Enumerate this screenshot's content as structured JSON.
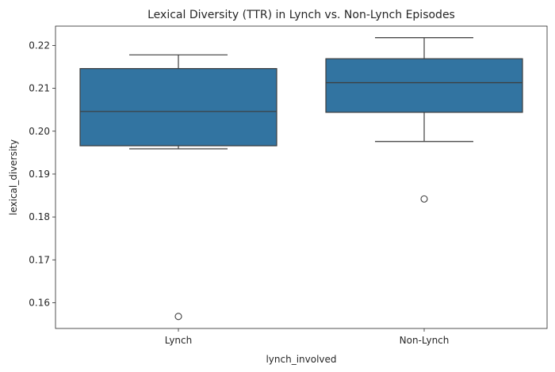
{
  "chart_data": {
    "type": "box",
    "title": "Lexical Diversity (TTR) in Lynch vs. Non-Lynch Episodes",
    "xlabel": "lynch_involved",
    "ylabel": "lexical_diversity",
    "categories": [
      "Lynch",
      "Non-Lynch"
    ],
    "boxes": [
      {
        "category": "Lynch",
        "whisker_low": 0.1959,
        "q1": 0.1966,
        "median": 0.2046,
        "q3": 0.2146,
        "whisker_high": 0.2178,
        "outliers": [
          0.1568
        ]
      },
      {
        "category": "Non-Lynch",
        "whisker_low": 0.1976,
        "q1": 0.2044,
        "median": 0.2113,
        "q3": 0.2169,
        "whisker_high": 0.2218,
        "outliers": [
          0.1842
        ]
      }
    ],
    "ylim": [
      0.154,
      0.2245
    ],
    "yticks": [
      0.16,
      0.17,
      0.18,
      0.19,
      0.2,
      0.21,
      0.22
    ],
    "ytick_labels": [
      "0.16",
      "0.17",
      "0.18",
      "0.19",
      "0.20",
      "0.21",
      "0.22"
    ],
    "grid": false,
    "colors": {
      "box_fill": "#3274a1",
      "line": "#3d3d3d",
      "axis": "#262626"
    }
  }
}
